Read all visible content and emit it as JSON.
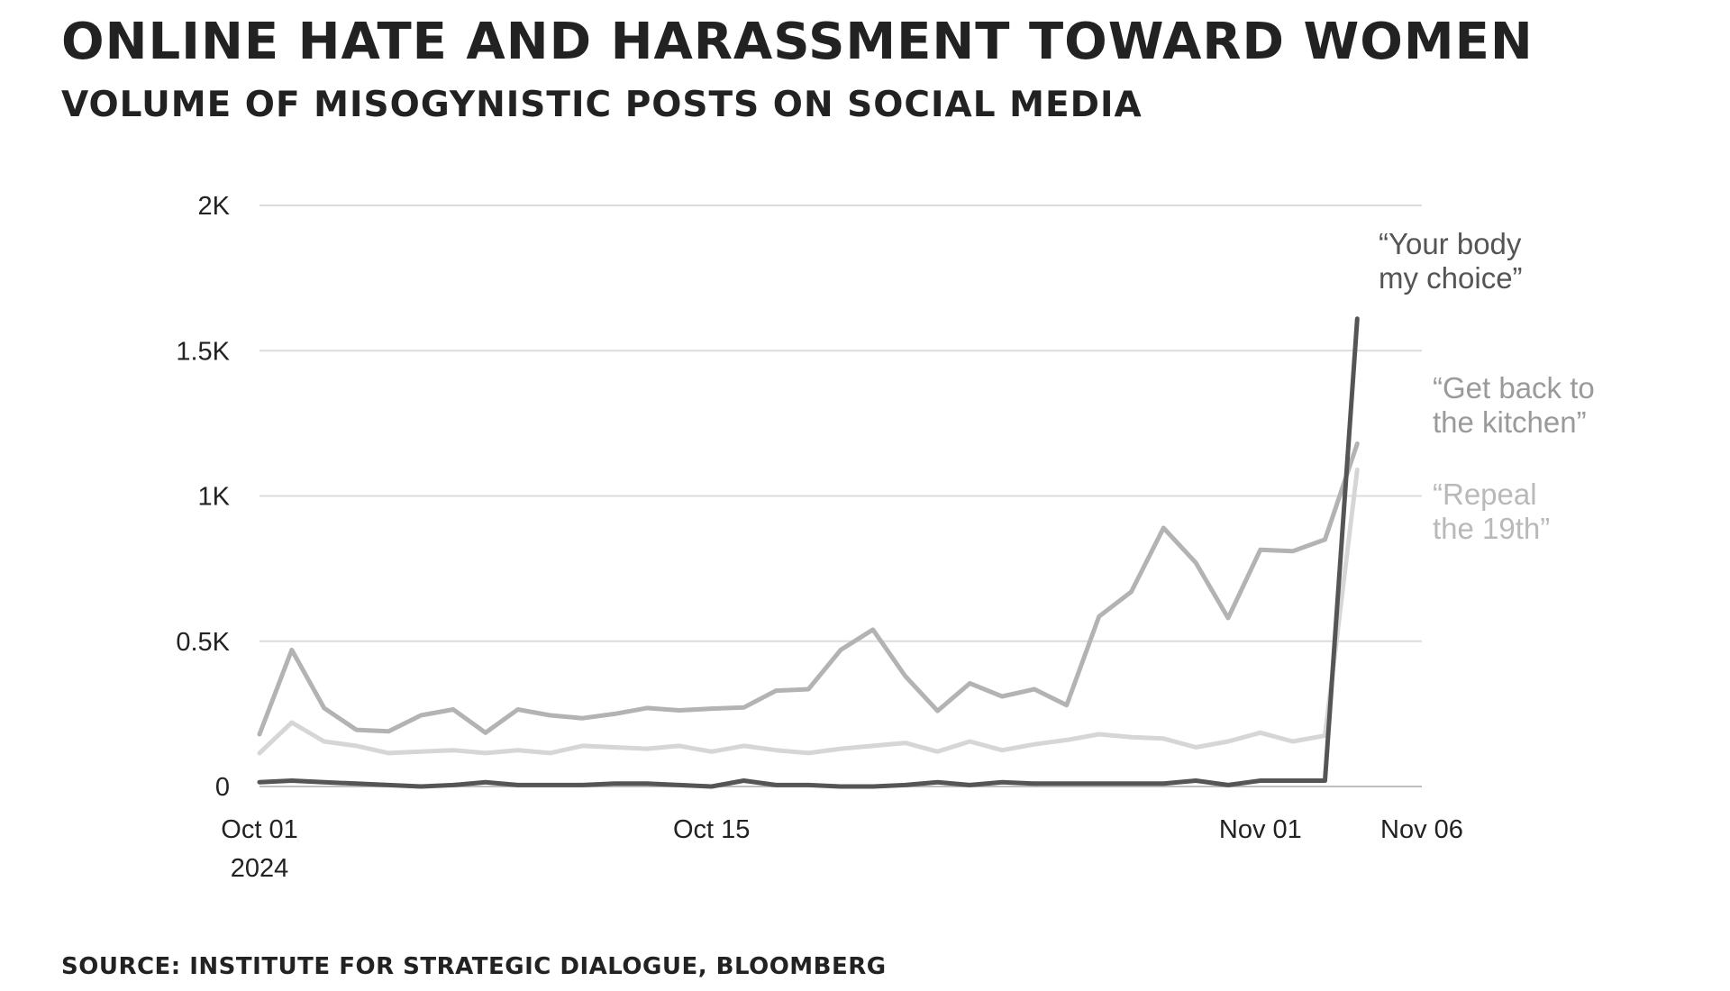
{
  "header": {
    "title": "ONLINE HATE AND HARASSMENT TOWARD WOMEN",
    "subtitle": "VOLUME OF MISOGYNISTIC POSTS ON SOCIAL MEDIA"
  },
  "footer": {
    "source": "SOURCE: INSTITUTE FOR STRATEGIC DIALOGUE, BLOOMBERG"
  },
  "chart_data": {
    "type": "line",
    "title": "ONLINE HATE AND HARASSMENT TOWARD WOMEN",
    "subtitle": "VOLUME OF MISOGYNISTIC POSTS ON SOCIAL MEDIA",
    "xlabel": "",
    "ylabel": "",
    "ylim": [
      0,
      2000
    ],
    "yticks": [
      {
        "value": 0,
        "label": "0"
      },
      {
        "value": 500,
        "label": "0.5K"
      },
      {
        "value": 1000,
        "label": "1K"
      },
      {
        "value": 1500,
        "label": "1.5K"
      },
      {
        "value": 2000,
        "label": "2K"
      }
    ],
    "xlim": [
      "2024-10-01",
      "2024-11-06"
    ],
    "xticks": [
      {
        "date": "2024-10-01",
        "lines": [
          "Oct 01",
          "2024"
        ]
      },
      {
        "date": "2024-10-15",
        "lines": [
          "Oct 15"
        ]
      },
      {
        "date": "2024-11-01",
        "lines": [
          "Nov 01"
        ]
      },
      {
        "date": "2024-11-06",
        "lines": [
          "Nov 06"
        ]
      }
    ],
    "grid": true,
    "series": [
      {
        "name": "“Get back to the kitchen”",
        "label_lines": [
          "“Get back to",
          "the kitchen”"
        ],
        "color": "#b3b3b3",
        "points": [
          [
            "2024-10-01",
            180
          ],
          [
            "2024-10-02",
            470
          ],
          [
            "2024-10-03",
            270
          ],
          [
            "2024-10-04",
            195
          ],
          [
            "2024-10-05",
            190
          ],
          [
            "2024-10-06",
            245
          ],
          [
            "2024-10-07",
            265
          ],
          [
            "2024-10-08",
            185
          ],
          [
            "2024-10-09",
            265
          ],
          [
            "2024-10-10",
            245
          ],
          [
            "2024-10-11",
            235
          ],
          [
            "2024-10-12",
            250
          ],
          [
            "2024-10-13",
            270
          ],
          [
            "2024-10-14",
            262
          ],
          [
            "2024-10-15",
            268
          ],
          [
            "2024-10-16",
            272
          ],
          [
            "2024-10-17",
            330
          ],
          [
            "2024-10-18",
            335
          ],
          [
            "2024-10-19",
            470
          ],
          [
            "2024-10-20",
            540
          ],
          [
            "2024-10-21",
            380
          ],
          [
            "2024-10-22",
            260
          ],
          [
            "2024-10-23",
            355
          ],
          [
            "2024-10-24",
            310
          ],
          [
            "2024-10-25",
            335
          ],
          [
            "2024-10-26",
            280
          ],
          [
            "2024-10-27",
            585
          ],
          [
            "2024-10-28",
            670
          ],
          [
            "2024-10-29",
            890
          ],
          [
            "2024-10-30",
            770
          ],
          [
            "2024-10-31",
            580
          ],
          [
            "2024-11-01",
            815
          ],
          [
            "2024-11-02",
            810
          ],
          [
            "2024-11-03",
            850
          ],
          [
            "2024-11-04",
            1180
          ]
        ]
      },
      {
        "name": "“Repeal the 19th”",
        "label_lines": [
          "“Repeal",
          "the 19th”"
        ],
        "color": "#d6d6d6",
        "points": [
          [
            "2024-10-01",
            115
          ],
          [
            "2024-10-02",
            220
          ],
          [
            "2024-10-03",
            155
          ],
          [
            "2024-10-04",
            140
          ],
          [
            "2024-10-05",
            115
          ],
          [
            "2024-10-06",
            120
          ],
          [
            "2024-10-07",
            125
          ],
          [
            "2024-10-08",
            115
          ],
          [
            "2024-10-09",
            125
          ],
          [
            "2024-10-10",
            115
          ],
          [
            "2024-10-11",
            140
          ],
          [
            "2024-10-12",
            135
          ],
          [
            "2024-10-13",
            130
          ],
          [
            "2024-10-14",
            140
          ],
          [
            "2024-10-15",
            120
          ],
          [
            "2024-10-16",
            140
          ],
          [
            "2024-10-17",
            125
          ],
          [
            "2024-10-18",
            115
          ],
          [
            "2024-10-19",
            130
          ],
          [
            "2024-10-20",
            140
          ],
          [
            "2024-10-21",
            150
          ],
          [
            "2024-10-22",
            120
          ],
          [
            "2024-10-23",
            155
          ],
          [
            "2024-10-24",
            125
          ],
          [
            "2024-10-25",
            145
          ],
          [
            "2024-10-26",
            160
          ],
          [
            "2024-10-27",
            180
          ],
          [
            "2024-10-28",
            170
          ],
          [
            "2024-10-29",
            165
          ],
          [
            "2024-10-30",
            135
          ],
          [
            "2024-10-31",
            155
          ],
          [
            "2024-11-01",
            185
          ],
          [
            "2024-11-02",
            155
          ],
          [
            "2024-11-03",
            175
          ],
          [
            "2024-11-04",
            1090
          ]
        ]
      },
      {
        "name": "“Your body my choice”",
        "label_lines": [
          "“Your body",
          "my choice”"
        ],
        "color": "#555555",
        "points": [
          [
            "2024-10-01",
            15
          ],
          [
            "2024-10-02",
            20
          ],
          [
            "2024-10-03",
            15
          ],
          [
            "2024-10-04",
            10
          ],
          [
            "2024-10-05",
            5
          ],
          [
            "2024-10-06",
            0
          ],
          [
            "2024-10-07",
            5
          ],
          [
            "2024-10-08",
            15
          ],
          [
            "2024-10-09",
            5
          ],
          [
            "2024-10-10",
            5
          ],
          [
            "2024-10-11",
            5
          ],
          [
            "2024-10-12",
            10
          ],
          [
            "2024-10-13",
            10
          ],
          [
            "2024-10-14",
            5
          ],
          [
            "2024-10-15",
            0
          ],
          [
            "2024-10-16",
            20
          ],
          [
            "2024-10-17",
            5
          ],
          [
            "2024-10-18",
            5
          ],
          [
            "2024-10-19",
            0
          ],
          [
            "2024-10-20",
            0
          ],
          [
            "2024-10-21",
            5
          ],
          [
            "2024-10-22",
            15
          ],
          [
            "2024-10-23",
            5
          ],
          [
            "2024-10-24",
            15
          ],
          [
            "2024-10-25",
            10
          ],
          [
            "2024-10-26",
            10
          ],
          [
            "2024-10-27",
            10
          ],
          [
            "2024-10-28",
            10
          ],
          [
            "2024-10-29",
            10
          ],
          [
            "2024-10-30",
            20
          ],
          [
            "2024-10-31",
            5
          ],
          [
            "2024-11-01",
            20
          ],
          [
            "2024-11-02",
            20
          ],
          [
            "2024-11-03",
            20
          ],
          [
            "2024-11-04",
            1610
          ]
        ]
      }
    ]
  }
}
